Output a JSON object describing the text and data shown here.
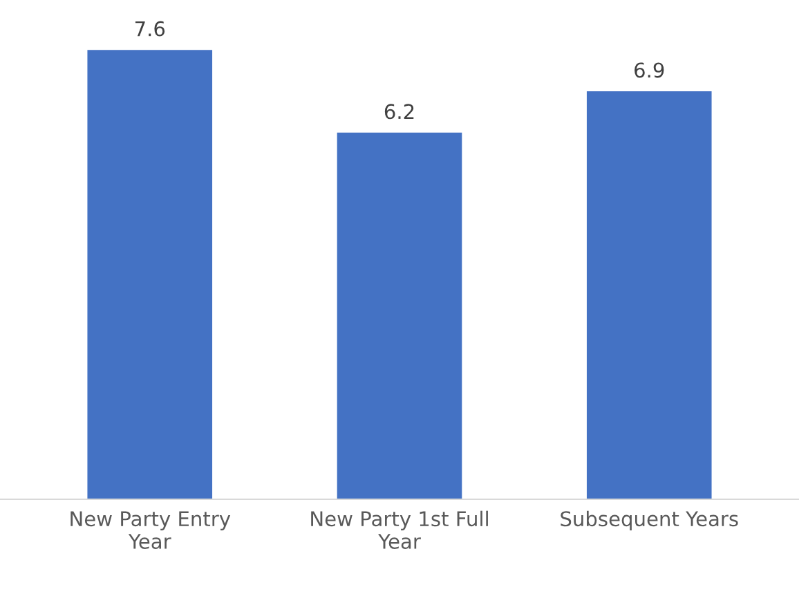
{
  "chart_data": {
    "type": "bar",
    "categories": [
      "New Party Entry Year",
      "New Party 1st Full Year",
      "Subsequent Years"
    ],
    "values": [
      7.6,
      6.2,
      6.9
    ],
    "color": "#4472c4",
    "data_labels": true
  }
}
